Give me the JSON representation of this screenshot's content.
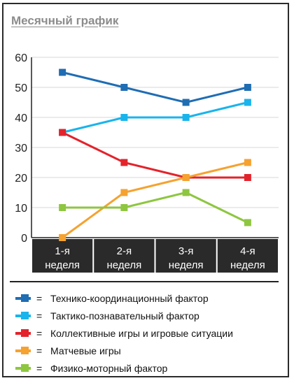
{
  "title": "Месячный график",
  "chart_data": {
    "type": "line",
    "categories": [
      [
        "1-я",
        "неделя"
      ],
      [
        "2-я",
        "неделя"
      ],
      [
        "3-я",
        "неделя"
      ],
      [
        "4-я",
        "неделя"
      ]
    ],
    "ylim": [
      0,
      60
    ],
    "yticks": [
      "0",
      "10",
      "20",
      "30",
      "40",
      "50",
      "60"
    ],
    "grid": true,
    "legend_placement": "bottom",
    "series": [
      {
        "name": "Технико-координационный фактор",
        "color": "#1f6db3",
        "values": [
          55,
          50,
          45,
          50
        ]
      },
      {
        "name": "Тактико-познавательный фактор",
        "color": "#19b4ec",
        "values": [
          35,
          40,
          40,
          45
        ]
      },
      {
        "name": "Коллективные игры и игровые ситуации",
        "color": "#e3232b",
        "values": [
          35,
          25,
          20,
          20
        ]
      },
      {
        "name": "Матчевые игры",
        "color": "#f5a230",
        "values": [
          0,
          15,
          20,
          25
        ]
      },
      {
        "name": "Физико-моторный фактор",
        "color": "#8ec640",
        "values": [
          10,
          10,
          15,
          5
        ]
      }
    ]
  },
  "legend": {
    "eq": "=",
    "items": [
      {
        "label": "Технико-координационный фактор",
        "icon": "blue-square-icon"
      },
      {
        "label": "Тактико-познавательный фактор",
        "icon": "lightblue-square-icon"
      },
      {
        "label": "Коллективные игры и игровые ситуации",
        "icon": "red-square-icon"
      },
      {
        "label": "Матчевые игры",
        "icon": "orange-square-icon"
      },
      {
        "label": "Физико-моторный фактор",
        "icon": "green-square-icon"
      }
    ]
  }
}
